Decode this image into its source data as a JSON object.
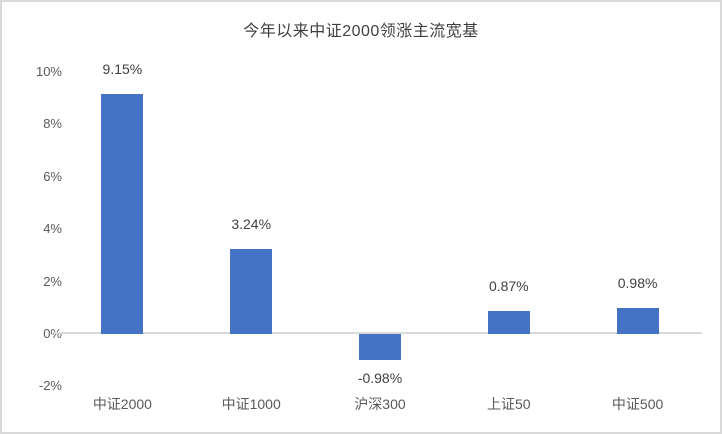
{
  "frame": {
    "border_color": "#d9d9d9",
    "background_color": "#ffffff"
  },
  "chart_data": {
    "type": "bar",
    "title": "今年以来中证2000领涨主流宽基",
    "categories": [
      "中证2000",
      "中证1000",
      "沪深300",
      "上证50",
      "中证500"
    ],
    "values": [
      9.15,
      3.24,
      -0.98,
      0.87,
      0.98
    ],
    "data_labels": [
      "9.15%",
      "3.24%",
      "-0.98%",
      "0.87%",
      "0.98%"
    ],
    "xlabel": "",
    "ylabel": "",
    "ylim": [
      -2,
      10
    ],
    "ytick_step": 2,
    "ytick_labels": [
      "10%",
      "8%",
      "6%",
      "4%",
      "2%",
      "0%",
      "-2%"
    ],
    "grid": "none",
    "legend": "none",
    "bar_color": "#4472c4",
    "title_color": "#404040",
    "data_label_color": "#404040",
    "axis_label_color": "#595959",
    "baseline_color": "#d9d9d9"
  }
}
